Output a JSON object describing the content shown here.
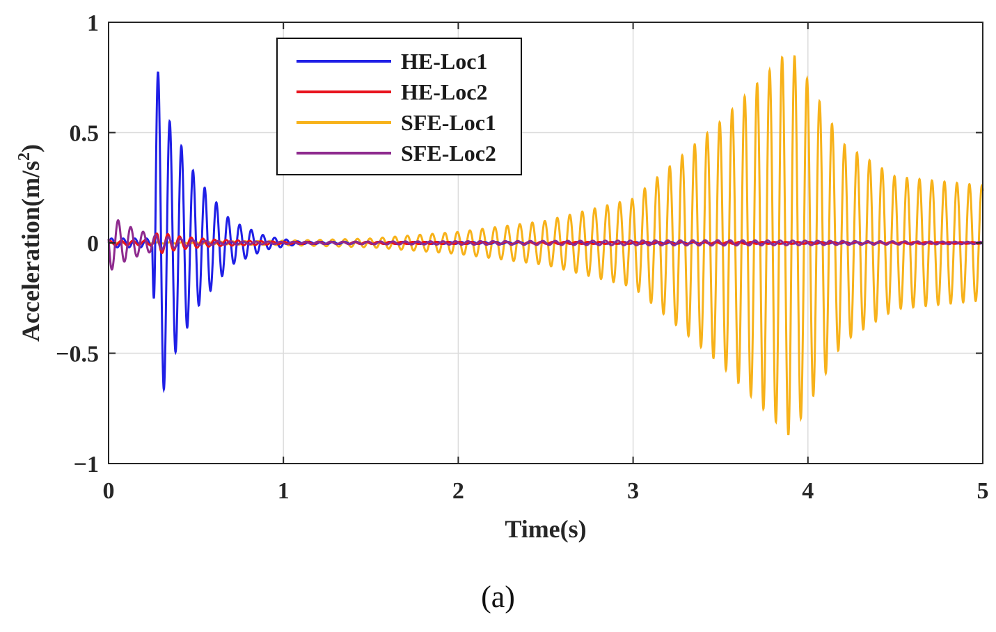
{
  "chart_data": {
    "type": "line",
    "title": "",
    "xlabel": "Time(s)",
    "ylabel": "Acceleration(m/s2)",
    "ylabel_base": "Acceleration(m/s",
    "ylabel_sup": "2",
    "ylabel_close": ")",
    "xlim": [
      0,
      5
    ],
    "ylim": [
      -1,
      1
    ],
    "xticks": [
      0,
      1,
      2,
      3,
      4,
      5
    ],
    "xtick_labels": [
      "0",
      "1",
      "2",
      "3",
      "4",
      "5"
    ],
    "yticks": [
      -1,
      -0.5,
      0,
      0.5,
      1
    ],
    "ytick_labels": [
      "−1",
      "−0.5",
      "0",
      "0.5",
      "1"
    ],
    "grid": true,
    "legend_position": "top-center",
    "series": [
      {
        "name": "HE-Loc1",
        "color": "#1f1fe6",
        "description": "impulse at ~0.26 s decaying oscillation",
        "envelope": {
          "t": [
            0,
            0.25,
            0.27,
            0.35,
            0.5,
            0.7,
            0.9,
            1.1,
            5
          ],
          "amp": [
            0.02,
            0.02,
            0.82,
            0.55,
            0.3,
            0.1,
            0.03,
            0.005,
            0.003
          ]
        },
        "frequency_hz": 15
      },
      {
        "name": "HE-Loc2",
        "color": "#e8141e",
        "description": "small decaying oscillation near zero",
        "envelope": {
          "t": [
            0,
            0.25,
            0.28,
            0.4,
            0.6,
            1.0,
            5
          ],
          "amp": [
            0.01,
            0.01,
            0.05,
            0.03,
            0.015,
            0.005,
            0.004
          ]
        },
        "frequency_hz": 15
      },
      {
        "name": "SFE-Loc1",
        "color": "#f7b21a",
        "description": "growing then decaying oscillation peaking near 3.9 s",
        "envelope": {
          "t": [
            0,
            1.0,
            1.5,
            2.0,
            2.5,
            3.0,
            3.5,
            3.9,
            4.2,
            4.5,
            5.0
          ],
          "amp": [
            0.0,
            0.01,
            0.02,
            0.05,
            0.1,
            0.2,
            0.55,
            0.88,
            0.45,
            0.3,
            0.26
          ]
        },
        "frequency_hz": 14
      },
      {
        "name": "SFE-Loc2",
        "color": "#8e2a8e",
        "description": "initial transient near 0 s then small oscillation",
        "envelope": {
          "t": [
            0,
            0.02,
            0.1,
            0.2,
            0.3,
            0.5,
            1.0,
            3.5,
            4.0,
            5.0
          ],
          "amp": [
            0.13,
            0.12,
            0.08,
            0.05,
            0.03,
            0.01,
            0.005,
            0.012,
            0.01,
            0.005
          ]
        },
        "frequency_hz": 14
      }
    ]
  },
  "caption": "(a)"
}
